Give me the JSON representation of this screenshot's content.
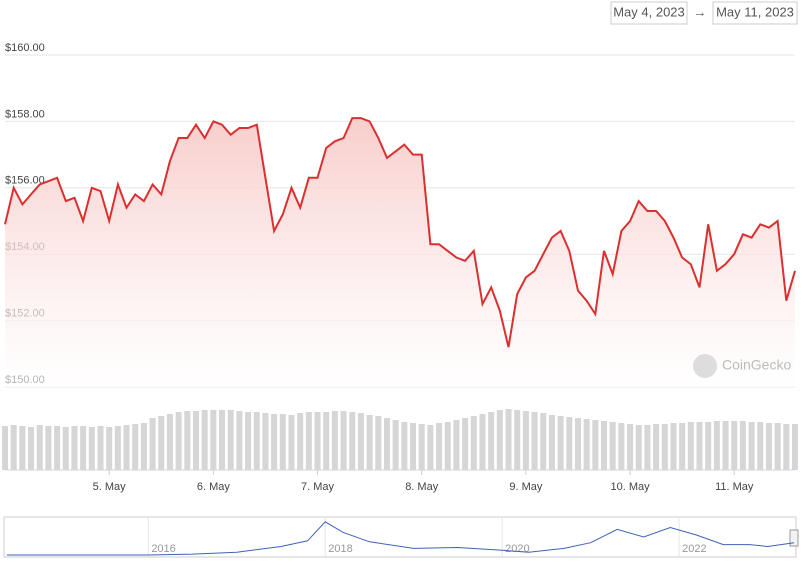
{
  "chart_data": {
    "type": "line",
    "range": {
      "from": "May 4, 2023",
      "separator": "→",
      "to": "May 11, 2023"
    },
    "watermark": "CoinGecko",
    "color": "#dc2f2f",
    "volume_color": "#d6d6d6",
    "x": [
      "2023-05-04T00:00",
      "2023-05-04T02:00",
      "2023-05-04T04:00",
      "2023-05-04T06:00",
      "2023-05-04T08:00",
      "2023-05-04T10:00",
      "2023-05-04T12:00",
      "2023-05-04T14:00",
      "2023-05-04T16:00",
      "2023-05-04T18:00",
      "2023-05-04T20:00",
      "2023-05-04T22:00",
      "2023-05-05T00:00",
      "2023-05-05T02:00",
      "2023-05-05T04:00",
      "2023-05-05T06:00",
      "2023-05-05T08:00",
      "2023-05-05T10:00",
      "2023-05-05T12:00",
      "2023-05-05T14:00",
      "2023-05-05T16:00",
      "2023-05-05T18:00",
      "2023-05-05T20:00",
      "2023-05-05T22:00",
      "2023-05-06T00:00",
      "2023-05-06T02:00",
      "2023-05-06T04:00",
      "2023-05-06T06:00",
      "2023-05-06T08:00",
      "2023-05-06T10:00",
      "2023-05-06T12:00",
      "2023-05-06T14:00",
      "2023-05-06T16:00",
      "2023-05-06T18:00",
      "2023-05-06T20:00",
      "2023-05-06T22:00",
      "2023-05-07T00:00",
      "2023-05-07T02:00",
      "2023-05-07T04:00",
      "2023-05-07T06:00",
      "2023-05-07T08:00",
      "2023-05-07T10:00",
      "2023-05-07T12:00",
      "2023-05-07T14:00",
      "2023-05-07T16:00",
      "2023-05-07T18:00",
      "2023-05-07T20:00",
      "2023-05-07T22:00",
      "2023-05-08T00:00",
      "2023-05-08T02:00",
      "2023-05-08T04:00",
      "2023-05-08T06:00",
      "2023-05-08T08:00",
      "2023-05-08T10:00",
      "2023-05-08T12:00",
      "2023-05-08T14:00",
      "2023-05-08T16:00",
      "2023-05-08T18:00",
      "2023-05-08T20:00",
      "2023-05-08T22:00",
      "2023-05-09T00:00",
      "2023-05-09T02:00",
      "2023-05-09T04:00",
      "2023-05-09T06:00",
      "2023-05-09T08:00",
      "2023-05-09T10:00",
      "2023-05-09T12:00",
      "2023-05-09T14:00",
      "2023-05-09T16:00",
      "2023-05-09T18:00",
      "2023-05-09T20:00",
      "2023-05-09T22:00",
      "2023-05-10T00:00",
      "2023-05-10T02:00",
      "2023-05-10T04:00",
      "2023-05-10T06:00",
      "2023-05-10T08:00",
      "2023-05-10T10:00",
      "2023-05-10T12:00",
      "2023-05-10T14:00",
      "2023-05-10T16:00",
      "2023-05-10T18:00",
      "2023-05-10T20:00",
      "2023-05-10T22:00",
      "2023-05-11T00:00",
      "2023-05-11T02:00",
      "2023-05-11T04:00",
      "2023-05-11T06:00",
      "2023-05-11T08:00",
      "2023-05-11T10:00",
      "2023-05-11T12:00",
      "2023-05-11T14:00"
    ],
    "values": [
      154.9,
      156.0,
      155.5,
      155.8,
      156.1,
      156.2,
      156.3,
      155.6,
      155.7,
      155.0,
      156.0,
      155.9,
      155.0,
      156.1,
      155.4,
      155.8,
      155.6,
      156.1,
      155.8,
      156.8,
      157.5,
      157.5,
      157.9,
      157.5,
      158.0,
      157.9,
      157.6,
      157.8,
      157.8,
      157.9,
      156.3,
      154.7,
      155.2,
      156.0,
      155.4,
      156.3,
      156.3,
      157.2,
      157.4,
      157.5,
      158.1,
      158.1,
      158.0,
      157.5,
      156.9,
      157.1,
      157.3,
      157.0,
      157.0,
      154.3,
      154.3,
      154.1,
      153.9,
      153.8,
      154.1,
      152.5,
      153.0,
      152.3,
      151.2,
      152.8,
      153.3,
      153.5,
      154.0,
      154.5,
      154.7,
      154.1,
      152.9,
      152.6,
      152.2,
      154.1,
      153.4,
      154.7,
      155.0,
      155.6,
      155.3,
      155.3,
      155.0,
      154.5,
      153.9,
      153.7,
      153.0,
      154.9,
      153.5,
      153.7,
      154.0,
      154.6,
      154.5,
      154.9,
      154.8,
      155.0,
      152.6,
      153.5
    ],
    "volume": [
      44,
      45,
      44,
      43,
      45,
      44,
      44,
      43,
      44,
      44,
      43,
      44,
      43,
      44,
      45,
      46,
      47,
      52,
      54,
      56,
      58,
      59,
      59,
      60,
      60,
      60,
      60,
      59,
      58,
      58,
      57,
      56,
      56,
      55,
      57,
      58,
      58,
      58,
      59,
      59,
      58,
      57,
      55,
      54,
      52,
      50,
      48,
      47,
      46,
      45,
      47,
      48,
      50,
      52,
      54,
      56,
      58,
      60,
      61,
      60,
      59,
      58,
      57,
      55,
      54,
      53,
      52,
      51,
      50,
      49,
      48,
      47,
      46,
      45,
      45,
      46,
      46,
      47,
      47,
      48,
      48,
      48,
      49,
      49,
      49,
      49,
      48,
      48,
      47,
      47,
      46,
      46
    ],
    "vlim": [
      0,
      85
    ],
    "xlim": [
      "2023-05-04T00:00",
      "2023-05-11T14:00"
    ],
    "xticks": [
      {
        "value": "2023-05-05T00:00",
        "label": "5. May"
      },
      {
        "value": "2023-05-06T00:00",
        "label": "6. May"
      },
      {
        "value": "2023-05-07T00:00",
        "label": "7. May"
      },
      {
        "value": "2023-05-08T00:00",
        "label": "8. May"
      },
      {
        "value": "2023-05-09T00:00",
        "label": "9. May"
      },
      {
        "value": "2023-05-10T00:00",
        "label": "10. May"
      },
      {
        "value": "2023-05-11T00:00",
        "label": "11. May"
      }
    ],
    "ylim": [
      150,
      160
    ],
    "yticks": [
      {
        "value": 160,
        "label": "$160.00"
      },
      {
        "value": 158,
        "label": "$158.00"
      },
      {
        "value": 156,
        "label": "$156.00"
      },
      {
        "value": 154,
        "label": "$154.00"
      },
      {
        "value": 152,
        "label": "$152.00"
      },
      {
        "value": 150,
        "label": "$150.00"
      }
    ],
    "grid": true,
    "navigator": {
      "color": "#3f62b8",
      "x": [
        2014.4,
        2015,
        2016,
        2016.5,
        2017,
        2017.5,
        2017.8,
        2018.0,
        2018.2,
        2018.5,
        2019,
        2019.5,
        2020,
        2020.3,
        2020.7,
        2021,
        2021.3,
        2021.6,
        2021.9,
        2022.2,
        2022.5,
        2022.8,
        2023.0,
        2023.3
      ],
      "values": [
        1,
        1,
        1,
        2,
        4,
        10,
        16,
        36,
        25,
        15,
        8,
        9,
        6,
        4,
        8,
        14,
        28,
        20,
        30,
        22,
        12,
        12,
        10,
        14
      ],
      "xlim": [
        2014.38,
        2023.31
      ],
      "ylim": [
        0,
        40
      ],
      "xticks": [
        2016,
        2018,
        2020,
        2022
      ]
    }
  }
}
